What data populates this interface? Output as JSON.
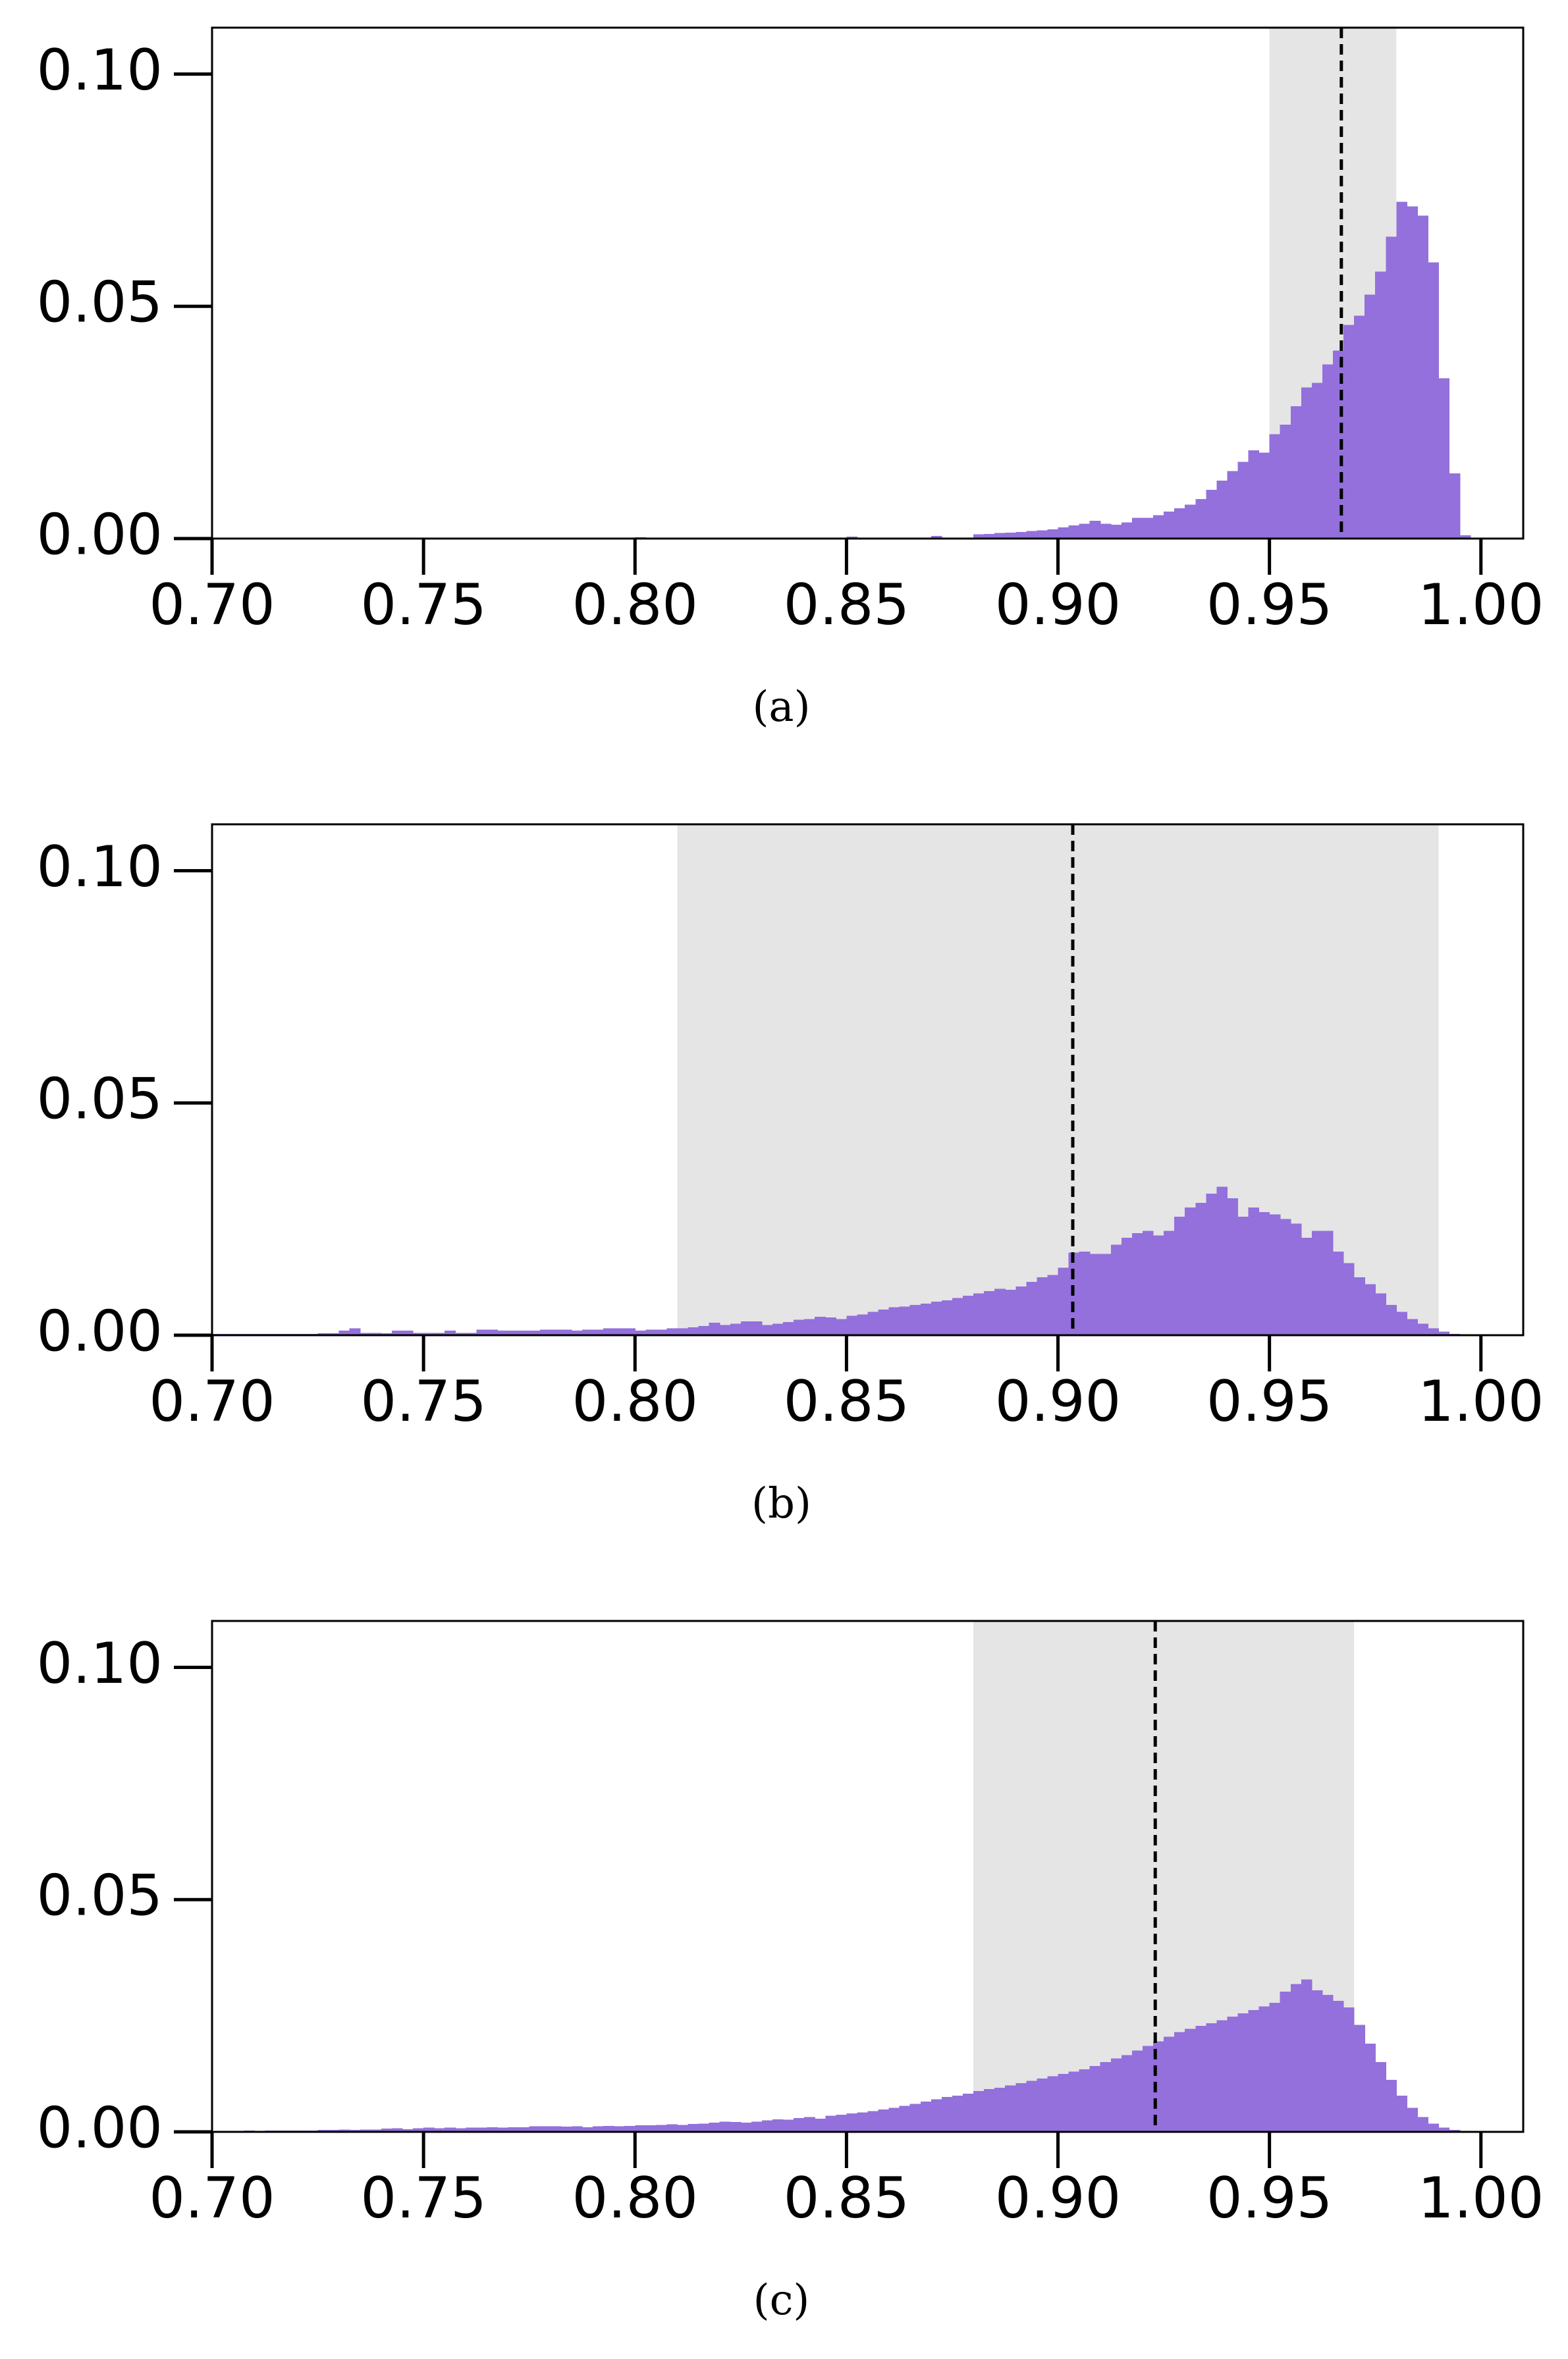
{
  "colors": {
    "bar": "#9370DB",
    "band": "#E5E5E5",
    "axis": "#000000",
    "median_line": "#000000"
  },
  "chart_data": [
    {
      "type": "bar",
      "caption": "(a)",
      "title": "",
      "xlabel": "",
      "ylabel": "",
      "xlim": [
        0.7,
        1.01
      ],
      "ylim": [
        0.0,
        0.11
      ],
      "xticks": [
        0.7,
        0.75,
        0.8,
        0.85,
        0.9,
        0.95,
        1.0
      ],
      "xtick_labels": [
        "0.70",
        "0.75",
        "0.80",
        "0.85",
        "0.90",
        "0.95",
        "1.00"
      ],
      "yticks": [
        0.0,
        0.05,
        0.1
      ],
      "ytick_labels": [
        "0.00",
        "0.05",
        "0.10"
      ],
      "grid": false,
      "bin_width": 0.0025,
      "band": [
        0.95,
        0.98
      ],
      "dashed_line": 0.967,
      "bins": [
        [
          0.8,
          0.0003
        ],
        [
          0.85,
          0.0004
        ],
        [
          0.87,
          0.0006
        ],
        [
          0.88,
          0.0009
        ],
        [
          0.8825,
          0.001
        ],
        [
          0.885,
          0.0012
        ],
        [
          0.8875,
          0.0013
        ],
        [
          0.89,
          0.0014
        ],
        [
          0.8925,
          0.0016
        ],
        [
          0.895,
          0.0018
        ],
        [
          0.8975,
          0.002
        ],
        [
          0.9,
          0.0024
        ],
        [
          0.9025,
          0.0028
        ],
        [
          0.905,
          0.0032
        ],
        [
          0.9075,
          0.0038
        ],
        [
          0.91,
          0.0032
        ],
        [
          0.9125,
          0.003
        ],
        [
          0.915,
          0.0035
        ],
        [
          0.9175,
          0.0045
        ],
        [
          0.92,
          0.0045
        ],
        [
          0.9225,
          0.005
        ],
        [
          0.925,
          0.0058
        ],
        [
          0.9275,
          0.0065
        ],
        [
          0.93,
          0.0073
        ],
        [
          0.9325,
          0.0085
        ],
        [
          0.935,
          0.0105
        ],
        [
          0.9375,
          0.0125
        ],
        [
          0.94,
          0.0145
        ],
        [
          0.9425,
          0.0165
        ],
        [
          0.945,
          0.019
        ],
        [
          0.9475,
          0.0185
        ],
        [
          0.95,
          0.0225
        ],
        [
          0.9525,
          0.0245
        ],
        [
          0.955,
          0.0285
        ],
        [
          0.9575,
          0.0325
        ],
        [
          0.96,
          0.0335
        ],
        [
          0.9625,
          0.0375
        ],
        [
          0.965,
          0.0405
        ],
        [
          0.9675,
          0.046
        ],
        [
          0.97,
          0.048
        ],
        [
          0.9725,
          0.0525
        ],
        [
          0.975,
          0.0575
        ],
        [
          0.9775,
          0.065
        ],
        [
          0.98,
          0.0725
        ],
        [
          0.9825,
          0.0715
        ],
        [
          0.985,
          0.0695
        ],
        [
          0.9875,
          0.0595
        ],
        [
          0.99,
          0.0345
        ],
        [
          0.9925,
          0.014
        ],
        [
          0.995,
          0.0007
        ]
      ]
    },
    {
      "type": "bar",
      "caption": "(b)",
      "title": "",
      "xlabel": "",
      "ylabel": "",
      "xlim": [
        0.7,
        1.01
      ],
      "ylim": [
        0.0,
        0.11
      ],
      "xticks": [
        0.7,
        0.75,
        0.8,
        0.85,
        0.9,
        0.95,
        1.0
      ],
      "xtick_labels": [
        "0.70",
        "0.75",
        "0.80",
        "0.85",
        "0.90",
        "0.95",
        "1.00"
      ],
      "yticks": [
        0.0,
        0.05,
        0.1
      ],
      "ytick_labels": [
        "0.00",
        "0.05",
        "0.10"
      ],
      "grid": false,
      "bin_width": 0.0025,
      "band": [
        0.81,
        0.99
      ],
      "dashed_line": 0.9035,
      "bins": [
        [
          0.7,
          0.0003
        ],
        [
          0.7025,
          0.0003
        ],
        [
          0.705,
          0.0003
        ],
        [
          0.7075,
          0.0003
        ],
        [
          0.71,
          0.0003
        ],
        [
          0.7125,
          0.0003
        ],
        [
          0.715,
          0.0003
        ],
        [
          0.7175,
          0.0003
        ],
        [
          0.72,
          0.0003
        ],
        [
          0.7225,
          0.0003
        ],
        [
          0.725,
          0.0004
        ],
        [
          0.7275,
          0.0004
        ],
        [
          0.73,
          0.001
        ],
        [
          0.7325,
          0.0015
        ],
        [
          0.735,
          0.0005
        ],
        [
          0.7375,
          0.0005
        ],
        [
          0.74,
          0.0004
        ],
        [
          0.7425,
          0.001
        ],
        [
          0.745,
          0.001
        ],
        [
          0.7475,
          0.0005
        ],
        [
          0.75,
          0.0005
        ],
        [
          0.7525,
          0.0005
        ],
        [
          0.755,
          0.001
        ],
        [
          0.7575,
          0.0005
        ],
        [
          0.76,
          0.0005
        ],
        [
          0.7625,
          0.0012
        ],
        [
          0.765,
          0.0012
        ],
        [
          0.7675,
          0.001
        ],
        [
          0.77,
          0.001
        ],
        [
          0.7725,
          0.001
        ],
        [
          0.775,
          0.001
        ],
        [
          0.7775,
          0.0012
        ],
        [
          0.78,
          0.0012
        ],
        [
          0.7825,
          0.0012
        ],
        [
          0.785,
          0.001
        ],
        [
          0.7875,
          0.0012
        ],
        [
          0.79,
          0.0012
        ],
        [
          0.7925,
          0.0015
        ],
        [
          0.795,
          0.0015
        ],
        [
          0.7975,
          0.0015
        ],
        [
          0.8,
          0.001
        ],
        [
          0.8025,
          0.0012
        ],
        [
          0.805,
          0.0012
        ],
        [
          0.8075,
          0.0015
        ],
        [
          0.81,
          0.0015
        ],
        [
          0.8125,
          0.0017
        ],
        [
          0.815,
          0.002
        ],
        [
          0.8175,
          0.0027
        ],
        [
          0.82,
          0.0022
        ],
        [
          0.8225,
          0.0025
        ],
        [
          0.825,
          0.003
        ],
        [
          0.8275,
          0.003
        ],
        [
          0.83,
          0.0022
        ],
        [
          0.8325,
          0.0025
        ],
        [
          0.835,
          0.0028
        ],
        [
          0.8375,
          0.0033
        ],
        [
          0.84,
          0.0035
        ],
        [
          0.8425,
          0.004
        ],
        [
          0.845,
          0.0038
        ],
        [
          0.8475,
          0.0035
        ],
        [
          0.85,
          0.0042
        ],
        [
          0.8525,
          0.0045
        ],
        [
          0.855,
          0.005
        ],
        [
          0.8575,
          0.0055
        ],
        [
          0.86,
          0.006
        ],
        [
          0.8625,
          0.0062
        ],
        [
          0.865,
          0.0065
        ],
        [
          0.8675,
          0.0068
        ],
        [
          0.87,
          0.0072
        ],
        [
          0.8725,
          0.0075
        ],
        [
          0.875,
          0.008
        ],
        [
          0.8775,
          0.0085
        ],
        [
          0.88,
          0.009
        ],
        [
          0.8825,
          0.0095
        ],
        [
          0.885,
          0.01
        ],
        [
          0.8875,
          0.0098
        ],
        [
          0.89,
          0.0105
        ],
        [
          0.8925,
          0.0115
        ],
        [
          0.895,
          0.0125
        ],
        [
          0.8975,
          0.013
        ],
        [
          0.9,
          0.0145
        ],
        [
          0.9025,
          0.0178
        ],
        [
          0.905,
          0.018
        ],
        [
          0.9075,
          0.0175
        ],
        [
          0.91,
          0.0175
        ],
        [
          0.9125,
          0.0195
        ],
        [
          0.915,
          0.021
        ],
        [
          0.9175,
          0.022
        ],
        [
          0.92,
          0.0225
        ],
        [
          0.9225,
          0.0215
        ],
        [
          0.925,
          0.0225
        ],
        [
          0.9275,
          0.0255
        ],
        [
          0.93,
          0.0275
        ],
        [
          0.9325,
          0.0285
        ],
        [
          0.935,
          0.0305
        ],
        [
          0.9375,
          0.032
        ],
        [
          0.94,
          0.0295
        ],
        [
          0.9425,
          0.0255
        ],
        [
          0.945,
          0.0275
        ],
        [
          0.9475,
          0.0265
        ],
        [
          0.95,
          0.026
        ],
        [
          0.9525,
          0.025
        ],
        [
          0.955,
          0.024
        ],
        [
          0.9575,
          0.021
        ],
        [
          0.96,
          0.0225
        ],
        [
          0.9625,
          0.0225
        ],
        [
          0.965,
          0.018
        ],
        [
          0.9675,
          0.0155
        ],
        [
          0.97,
          0.0125
        ],
        [
          0.9725,
          0.011
        ],
        [
          0.975,
          0.009
        ],
        [
          0.9775,
          0.0065
        ],
        [
          0.98,
          0.005
        ],
        [
          0.9825,
          0.0035
        ],
        [
          0.985,
          0.0025
        ],
        [
          0.9875,
          0.0015
        ],
        [
          0.99,
          0.0008
        ],
        [
          0.9925,
          0.0003
        ]
      ]
    },
    {
      "type": "bar",
      "caption": "(c)",
      "title": "",
      "xlabel": "",
      "ylabel": "",
      "xlim": [
        0.7,
        1.01
      ],
      "ylim": [
        0.0,
        0.11
      ],
      "xticks": [
        0.7,
        0.75,
        0.8,
        0.85,
        0.9,
        0.95,
        1.0
      ],
      "xtick_labels": [
        "0.70",
        "0.75",
        "0.80",
        "0.85",
        "0.90",
        "0.95",
        "1.00"
      ],
      "yticks": [
        0.0,
        0.05,
        0.1
      ],
      "ytick_labels": [
        "0.00",
        "0.05",
        "0.10"
      ],
      "grid": false,
      "bin_width": 0.0025,
      "band": [
        0.88,
        0.97
      ],
      "dashed_line": 0.923,
      "bins": [
        [
          0.705,
          0.0002
        ],
        [
          0.7075,
          0.0003
        ],
        [
          0.71,
          0.0002
        ],
        [
          0.7125,
          0.0003
        ],
        [
          0.715,
          0.0003
        ],
        [
          0.7175,
          0.0003
        ],
        [
          0.72,
          0.0003
        ],
        [
          0.7225,
          0.0003
        ],
        [
          0.725,
          0.0004
        ],
        [
          0.7275,
          0.0004
        ],
        [
          0.73,
          0.0005
        ],
        [
          0.7325,
          0.0004
        ],
        [
          0.735,
          0.0005
        ],
        [
          0.7375,
          0.0005
        ],
        [
          0.74,
          0.0007
        ],
        [
          0.7425,
          0.0008
        ],
        [
          0.745,
          0.0006
        ],
        [
          0.7475,
          0.0008
        ],
        [
          0.75,
          0.0009
        ],
        [
          0.7525,
          0.0008
        ],
        [
          0.755,
          0.0009
        ],
        [
          0.7575,
          0.0008
        ],
        [
          0.76,
          0.0009
        ],
        [
          0.7625,
          0.0009
        ],
        [
          0.765,
          0.001
        ],
        [
          0.7675,
          0.0009
        ],
        [
          0.77,
          0.001
        ],
        [
          0.7725,
          0.001
        ],
        [
          0.775,
          0.0012
        ],
        [
          0.7775,
          0.0012
        ],
        [
          0.78,
          0.0012
        ],
        [
          0.7825,
          0.0011
        ],
        [
          0.785,
          0.0012
        ],
        [
          0.7875,
          0.001
        ],
        [
          0.79,
          0.0012
        ],
        [
          0.7925,
          0.0013
        ],
        [
          0.795,
          0.0012
        ],
        [
          0.7975,
          0.0013
        ],
        [
          0.8,
          0.0014
        ],
        [
          0.8025,
          0.0014
        ],
        [
          0.805,
          0.0015
        ],
        [
          0.8075,
          0.0016
        ],
        [
          0.81,
          0.0015
        ],
        [
          0.8125,
          0.0017
        ],
        [
          0.815,
          0.0018
        ],
        [
          0.8175,
          0.002
        ],
        [
          0.82,
          0.0022
        ],
        [
          0.8225,
          0.0021
        ],
        [
          0.825,
          0.002
        ],
        [
          0.8275,
          0.0022
        ],
        [
          0.83,
          0.0025
        ],
        [
          0.8325,
          0.0027
        ],
        [
          0.835,
          0.0026
        ],
        [
          0.8375,
          0.003
        ],
        [
          0.84,
          0.0032
        ],
        [
          0.8425,
          0.0028
        ],
        [
          0.845,
          0.0035
        ],
        [
          0.8475,
          0.0037
        ],
        [
          0.85,
          0.004
        ],
        [
          0.8525,
          0.0042
        ],
        [
          0.855,
          0.0045
        ],
        [
          0.8575,
          0.0048
        ],
        [
          0.86,
          0.0052
        ],
        [
          0.8625,
          0.0056
        ],
        [
          0.865,
          0.006
        ],
        [
          0.8675,
          0.0065
        ],
        [
          0.87,
          0.007
        ],
        [
          0.8725,
          0.0075
        ],
        [
          0.875,
          0.0078
        ],
        [
          0.8775,
          0.0082
        ],
        [
          0.88,
          0.0088
        ],
        [
          0.8825,
          0.0092
        ],
        [
          0.885,
          0.0095
        ],
        [
          0.8875,
          0.01
        ],
        [
          0.89,
          0.0105
        ],
        [
          0.8925,
          0.011
        ],
        [
          0.895,
          0.0115
        ],
        [
          0.8975,
          0.012
        ],
        [
          0.9,
          0.0125
        ],
        [
          0.9025,
          0.013
        ],
        [
          0.905,
          0.0135
        ],
        [
          0.9075,
          0.0142
        ],
        [
          0.91,
          0.015
        ],
        [
          0.9125,
          0.0158
        ],
        [
          0.915,
          0.0165
        ],
        [
          0.9175,
          0.0175
        ],
        [
          0.92,
          0.0185
        ],
        [
          0.9225,
          0.0195
        ],
        [
          0.925,
          0.0205
        ],
        [
          0.9275,
          0.0215
        ],
        [
          0.93,
          0.0222
        ],
        [
          0.9325,
          0.0228
        ],
        [
          0.935,
          0.0234
        ],
        [
          0.9375,
          0.024
        ],
        [
          0.94,
          0.0248
        ],
        [
          0.9425,
          0.0255
        ],
        [
          0.945,
          0.0262
        ],
        [
          0.9475,
          0.027
        ],
        [
          0.95,
          0.0278
        ],
        [
          0.9525,
          0.0302
        ],
        [
          0.955,
          0.0318
        ],
        [
          0.9575,
          0.0328
        ],
        [
          0.96,
          0.0305
        ],
        [
          0.9625,
          0.0295
        ],
        [
          0.965,
          0.0282
        ],
        [
          0.9675,
          0.0268
        ],
        [
          0.97,
          0.023
        ],
        [
          0.9725,
          0.019
        ],
        [
          0.975,
          0.015
        ],
        [
          0.9775,
          0.0112
        ],
        [
          0.98,
          0.0078
        ],
        [
          0.9825,
          0.0052
        ],
        [
          0.985,
          0.0032
        ],
        [
          0.9875,
          0.0018
        ],
        [
          0.99,
          0.0009
        ],
        [
          0.9925,
          0.0004
        ]
      ]
    }
  ]
}
